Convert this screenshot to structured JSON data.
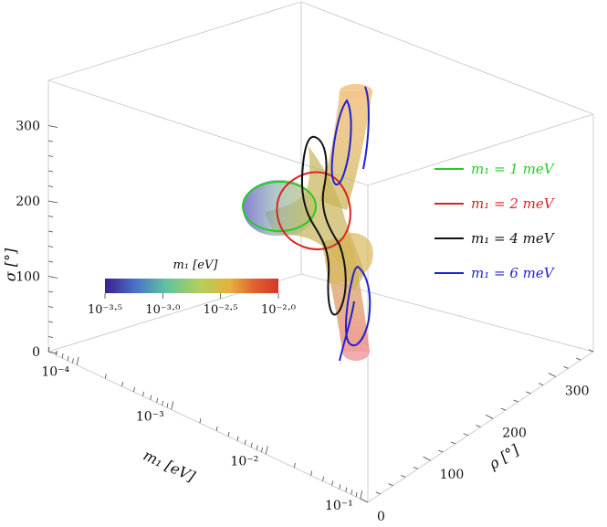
{
  "chart_data": {
    "type": "surface3d",
    "axes": {
      "x": {
        "label": "m₁ [eV]",
        "scale": "log",
        "range": [
          5e-05,
          0.12
        ],
        "ticks": [
          "10⁻⁴",
          "10⁻³",
          "10⁻²",
          "10⁻¹"
        ]
      },
      "y": {
        "label": "ρ [°]",
        "range": [
          0,
          360
        ],
        "ticks": [
          "0",
          "100",
          "200",
          "300"
        ]
      },
      "z": {
        "label": "σ [°]",
        "range": [
          0,
          360
        ],
        "ticks": [
          "0",
          "100",
          "200",
          "300"
        ]
      }
    },
    "colorbar": {
      "title": "m₁ [eV]",
      "ticks": [
        "10⁻³·⁵",
        "10⁻³·⁰",
        "10⁻²·⁵",
        "10⁻²·⁰"
      ],
      "range_log10": [
        -3.5,
        -2.0
      ],
      "colors": [
        "#3b1e8f",
        "#4a6fc9",
        "#5fc2a3",
        "#b5cf5a",
        "#e3b23c",
        "#e0622e",
        "#d9362a"
      ]
    },
    "series": [
      {
        "name": "m₁ = 1 meV",
        "value_eV": 0.001,
        "color": "#22cc22"
      },
      {
        "name": "m₁ = 2 meV",
        "value_eV": 0.002,
        "color": "#dd2222"
      },
      {
        "name": "m₁ = 4 meV",
        "value_eV": 0.004,
        "color": "#111111"
      },
      {
        "name": "m₁ = 6 meV",
        "value_eV": 0.006,
        "color": "#2222cc"
      }
    ],
    "legend_position": "right",
    "box": true
  }
}
